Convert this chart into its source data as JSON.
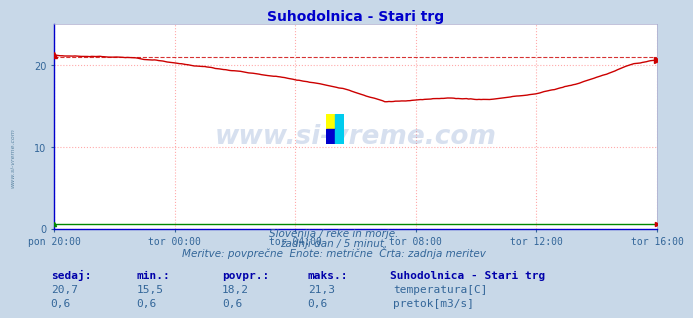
{
  "title": "Suhodolnica - Stari trg",
  "title_color": "#0000cc",
  "bg_color": "#c8d8e8",
  "plot_bg_color": "#ffffff",
  "grid_color": "#ffaaaa",
  "x_labels": [
    "pon 20:00",
    "tor 00:00",
    "tor 04:00",
    "tor 08:00",
    "tor 12:00",
    "tor 16:00"
  ],
  "x_ticks_norm": [
    0.0,
    0.2,
    0.4,
    0.6,
    0.8,
    1.0
  ],
  "n_points": 289,
  "ylim": [
    0,
    25
  ],
  "y_ticks": [
    0,
    10,
    20
  ],
  "temp_min": 15.5,
  "temp_max": 21.3,
  "temp_avg": 18.2,
  "temp_now": 20.7,
  "pretok_now": 0.6,
  "pretok_min": 0.6,
  "pretok_avg": 0.6,
  "pretok_max": 0.6,
  "red_color": "#cc0000",
  "green_color": "#008800",
  "blue_spine": "#0000cc",
  "watermark_color": "#2255aa",
  "subtitle1": "Slovenija / reke in morje.",
  "subtitle2": "zadnji dan / 5 minut.",
  "subtitle3": "Meritve: povprečne  Enote: metrične  Črta: zadnja meritev",
  "label_color": "#336699",
  "footer_header_color": "#0000aa",
  "legend_title": "Suhodolnica - Stari trg",
  "legend_temp": "temperatura[C]",
  "legend_pretok": "pretok[m3/s]",
  "sedaj_label": "sedaj:",
  "min_label": "min.:",
  "povpr_label": "povpr.:",
  "maks_label": "maks.:",
  "dashed_line_y": 21.0
}
